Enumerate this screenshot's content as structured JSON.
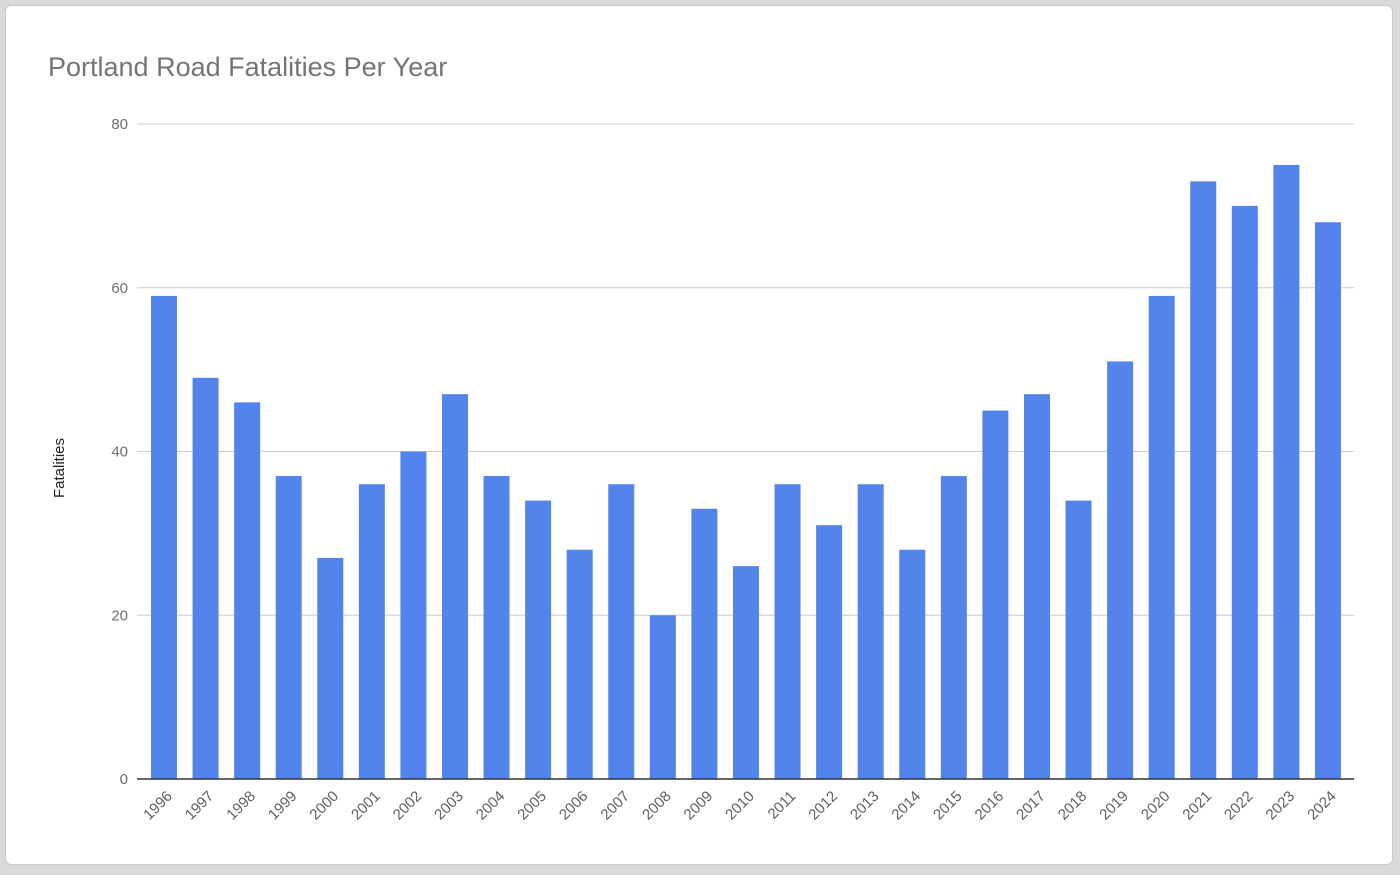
{
  "chart_data": {
    "type": "bar",
    "title": "Portland Road Fatalities Per Year",
    "xlabel": "",
    "ylabel": "Fatalities",
    "ylim": [
      0,
      80
    ],
    "yticks": [
      0,
      20,
      40,
      60,
      80
    ],
    "grid": true,
    "legend": "none",
    "bar_color": "#5384ec",
    "categories": [
      "1996",
      "1997",
      "1998",
      "1999",
      "2000",
      "2001",
      "2002",
      "2003",
      "2004",
      "2005",
      "2006",
      "2007",
      "2008",
      "2009",
      "2010",
      "2011",
      "2012",
      "2013",
      "2014",
      "2015",
      "2016",
      "2017",
      "2018",
      "2019",
      "2020",
      "2021",
      "2022",
      "2023",
      "2024"
    ],
    "values": [
      59,
      49,
      46,
      37,
      27,
      36,
      40,
      47,
      37,
      34,
      28,
      36,
      20,
      33,
      26,
      36,
      31,
      36,
      28,
      37,
      45,
      47,
      34,
      51,
      59,
      73,
      70,
      75,
      68
    ]
  }
}
